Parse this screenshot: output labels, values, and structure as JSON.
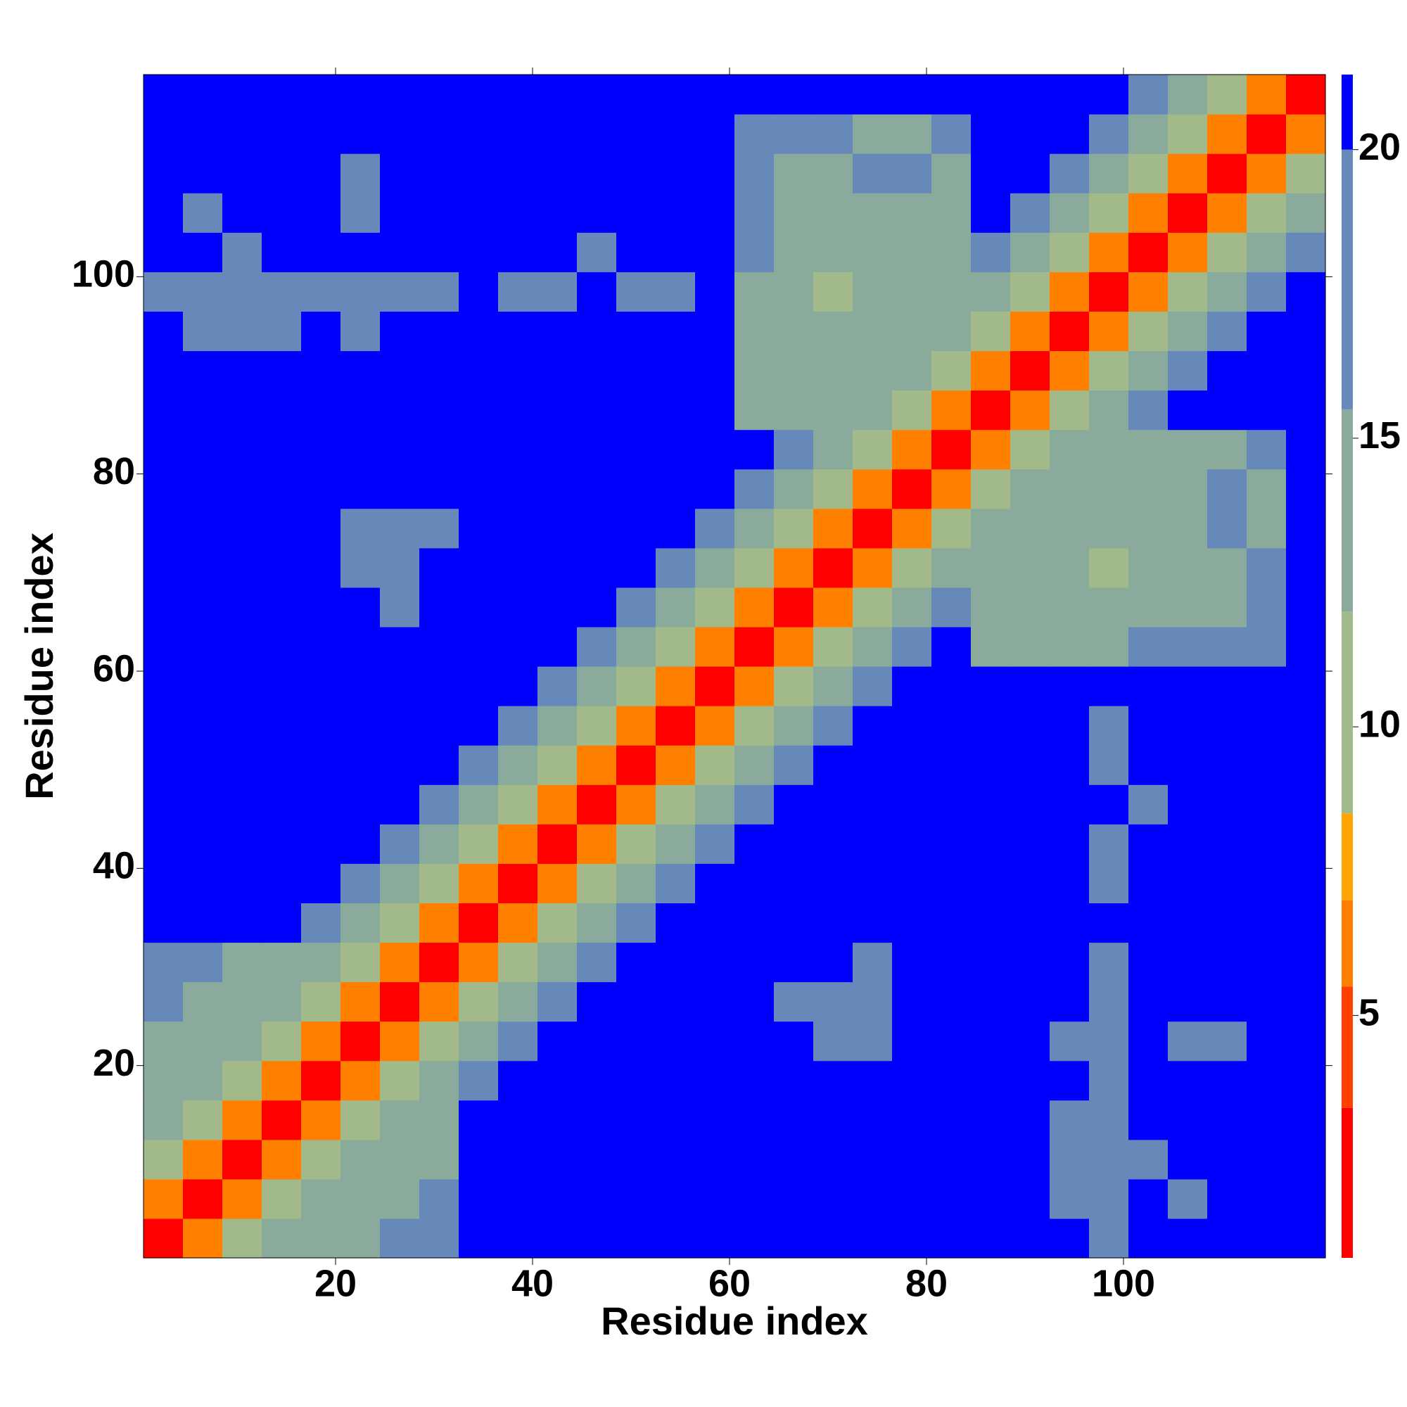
{
  "chart_data": {
    "type": "heatmap",
    "xlabel": "Residue index",
    "ylabel": "Residue index",
    "xlim": [
      0.5,
      120.5
    ],
    "ylim": [
      0.5,
      120.5
    ],
    "xticks": [
      20,
      40,
      60,
      80,
      100
    ],
    "yticks": [
      20,
      40,
      60,
      80,
      100
    ],
    "xbins": [
      0.5,
      4.5,
      8.5,
      12.5,
      16.5,
      20.5,
      24.5,
      28.5,
      32.5,
      36.5,
      40.5,
      44.5,
      48.5,
      52.5,
      56.5,
      60.5,
      64.5,
      68.5,
      72.5,
      76.5,
      80.5,
      84.5,
      88.5,
      92.5,
      96.5,
      100.5,
      104.5,
      108.5,
      112.5,
      116.5,
      120.5
    ],
    "ybins": [
      0.5,
      4.5,
      8.5,
      12.5,
      16.5,
      20.5,
      24.5,
      28.5,
      32.5,
      36.5,
      40.5,
      44.5,
      48.5,
      52.5,
      56.5,
      60.5,
      64.5,
      68.5,
      72.5,
      76.5,
      80.5,
      84.5,
      88.5,
      92.5,
      96.5,
      100.5,
      104.5,
      108.5,
      112.5,
      116.5,
      120.5
    ],
    "zlim": [
      0.8,
      21.3
    ],
    "zticks": [
      5,
      10,
      15,
      20
    ],
    "colorscale": [
      {
        "max": 3.4,
        "color": "#ff0000"
      },
      {
        "max": 5.5,
        "color": "#ff4000"
      },
      {
        "max": 7,
        "color": "#ff8000"
      },
      {
        "max": 8.5,
        "color": "#ffa500"
      },
      {
        "max": 12,
        "color": "#a2b98a"
      },
      {
        "max": 15.5,
        "color": "#8aab9c"
      },
      {
        "max": 20,
        "color": "#6689ba"
      },
      {
        "max": 21.3,
        "color": "#0000ff"
      }
    ],
    "values": [
      [
        3,
        7,
        12,
        13,
        14,
        15,
        16,
        17,
        21,
        21,
        21,
        21,
        21,
        21,
        21,
        21,
        21,
        21,
        21,
        21,
        21,
        21,
        21,
        21,
        20,
        21,
        21,
        21,
        21,
        21
      ],
      [
        7,
        3,
        7,
        12,
        13,
        14,
        15,
        16,
        21,
        21,
        21,
        21,
        21,
        21,
        21,
        21,
        21,
        21,
        21,
        21,
        21,
        21,
        21,
        19,
        16,
        21,
        19,
        21,
        21,
        21
      ],
      [
        12,
        7,
        3,
        7,
        12,
        13,
        14,
        15,
        21,
        21,
        21,
        21,
        21,
        21,
        21,
        21,
        21,
        21,
        21,
        21,
        21,
        21,
        21,
        19,
        17,
        19,
        21,
        21,
        21,
        21
      ],
      [
        13,
        12,
        7,
        3,
        7,
        12,
        13,
        14,
        21,
        21,
        21,
        21,
        21,
        21,
        21,
        21,
        21,
        21,
        21,
        21,
        21,
        21,
        21,
        18,
        18,
        21,
        21,
        21,
        21,
        21
      ],
      [
        14,
        13,
        12,
        7,
        3,
        7,
        12,
        13,
        18,
        21,
        21,
        21,
        21,
        21,
        21,
        21,
        21,
        21,
        21,
        21,
        21,
        21,
        21,
        21,
        20,
        21,
        21,
        21,
        21,
        21
      ],
      [
        15,
        14,
        13,
        12,
        7,
        3,
        7,
        12,
        15,
        18,
        21,
        21,
        21,
        21,
        21,
        21,
        21,
        16,
        19,
        21,
        21,
        21,
        21,
        20,
        19,
        21,
        19,
        19,
        21,
        21
      ],
      [
        16,
        15,
        14,
        13,
        12,
        7,
        3,
        7,
        12,
        15,
        18,
        21,
        21,
        21,
        21,
        21,
        19,
        18,
        19,
        21,
        21,
        21,
        21,
        21,
        19,
        21,
        21,
        21,
        21,
        21
      ],
      [
        17,
        16,
        15,
        14,
        13,
        12,
        7,
        3,
        7,
        12,
        15,
        18,
        21,
        21,
        21,
        21,
        21,
        21,
        20,
        21,
        21,
        21,
        21,
        21,
        20,
        21,
        21,
        21,
        21,
        21
      ],
      [
        21,
        21,
        21,
        21,
        18,
        15,
        12,
        7,
        3,
        7,
        12,
        15,
        18,
        21,
        21,
        21,
        21,
        21,
        21,
        21,
        21,
        21,
        21,
        21,
        21,
        21,
        21,
        21,
        21,
        21
      ],
      [
        21,
        21,
        21,
        21,
        21,
        18,
        15,
        12,
        7,
        3,
        7,
        12,
        15,
        18,
        21,
        21,
        21,
        21,
        21,
        21,
        21,
        21,
        21,
        21,
        20,
        21,
        21,
        21,
        21,
        21
      ],
      [
        21,
        21,
        21,
        21,
        21,
        21,
        18,
        15,
        12,
        7,
        3,
        7,
        12,
        14,
        16,
        21,
        21,
        21,
        21,
        21,
        21,
        21,
        21,
        21,
        19,
        21,
        21,
        21,
        21,
        21
      ],
      [
        21,
        21,
        21,
        21,
        21,
        21,
        21,
        18,
        15,
        12,
        7,
        3,
        7,
        12,
        14,
        16,
        21,
        21,
        21,
        21,
        21,
        21,
        21,
        21,
        21,
        20,
        21,
        21,
        21,
        21
      ],
      [
        21,
        21,
        21,
        21,
        21,
        21,
        21,
        21,
        18,
        15,
        12,
        7,
        3,
        7,
        12,
        14,
        16,
        21,
        21,
        21,
        21,
        21,
        21,
        21,
        20,
        21,
        21,
        21,
        21,
        21
      ],
      [
        21,
        21,
        21,
        21,
        21,
        21,
        21,
        21,
        21,
        18,
        14,
        12,
        7,
        3,
        7,
        12,
        14,
        18,
        21,
        21,
        21,
        21,
        21,
        21,
        19,
        21,
        21,
        21,
        21,
        21
      ],
      [
        21,
        21,
        21,
        21,
        21,
        21,
        21,
        21,
        21,
        21,
        16,
        14,
        12,
        7,
        3,
        7,
        12,
        15,
        18,
        21,
        21,
        21,
        21,
        21,
        21,
        21,
        21,
        21,
        21,
        21
      ],
      [
        21,
        21,
        21,
        21,
        21,
        21,
        21,
        21,
        21,
        21,
        21,
        16,
        14,
        12,
        7,
        3,
        7,
        12,
        15,
        18,
        21,
        15,
        15,
        15,
        15,
        16,
        17,
        19,
        20,
        21
      ],
      [
        21,
        21,
        21,
        21,
        21,
        21,
        19,
        21,
        21,
        21,
        21,
        21,
        16,
        14,
        12,
        7,
        3,
        7,
        12,
        15,
        18,
        15,
        15,
        13,
        14,
        15,
        15,
        15,
        18,
        21
      ],
      [
        21,
        21,
        21,
        21,
        21,
        16,
        18,
        21,
        21,
        21,
        21,
        21,
        21,
        18,
        15,
        12,
        7,
        3,
        7,
        12,
        15,
        15,
        15,
        15,
        12,
        13,
        15,
        15,
        18,
        21
      ],
      [
        21,
        21,
        21,
        21,
        21,
        19,
        19,
        20,
        21,
        21,
        21,
        21,
        21,
        21,
        18,
        15,
        12,
        7,
        3,
        7,
        12,
        15,
        15,
        13,
        15,
        15,
        15,
        16,
        15,
        21
      ],
      [
        21,
        21,
        21,
        21,
        21,
        21,
        21,
        21,
        21,
        21,
        21,
        21,
        21,
        21,
        21,
        18,
        15,
        12,
        7,
        3,
        7,
        12,
        15,
        15,
        15,
        15,
        15,
        16,
        15,
        21
      ],
      [
        21,
        21,
        21,
        21,
        21,
        21,
        21,
        21,
        21,
        21,
        21,
        21,
        21,
        21,
        21,
        21,
        18,
        15,
        12,
        7,
        3,
        7,
        12,
        15,
        15,
        15,
        15,
        15,
        17,
        21
      ],
      [
        21,
        21,
        21,
        21,
        21,
        21,
        21,
        21,
        21,
        21,
        21,
        21,
        21,
        21,
        21,
        15,
        15,
        15,
        15,
        12,
        7,
        3,
        7,
        12,
        15,
        18,
        21,
        21,
        21,
        21
      ],
      [
        21,
        21,
        21,
        21,
        21,
        21,
        21,
        21,
        21,
        21,
        21,
        21,
        21,
        21,
        21,
        15,
        15,
        15,
        15,
        15,
        12,
        7,
        3,
        7,
        12,
        15,
        18,
        21,
        21,
        21
      ],
      [
        21,
        19,
        19,
        18,
        21,
        20,
        21,
        21,
        21,
        21,
        21,
        21,
        21,
        21,
        21,
        15,
        13,
        15,
        13,
        15,
        15,
        12,
        7,
        3,
        7,
        12,
        15,
        18,
        21,
        21
      ],
      [
        20,
        16,
        17,
        18,
        20,
        19,
        19,
        20,
        21,
        20,
        19,
        21,
        20,
        19,
        21,
        15,
        14,
        12,
        15,
        15,
        15,
        15,
        12,
        7,
        3,
        7,
        12,
        15,
        18,
        21
      ],
      [
        21,
        21,
        19,
        21,
        21,
        21,
        21,
        21,
        21,
        21,
        21,
        20,
        21,
        21,
        21,
        16,
        15,
        13,
        15,
        15,
        15,
        18,
        15,
        12,
        7,
        3,
        7,
        12,
        15,
        18
      ],
      [
        21,
        19,
        21,
        21,
        21,
        19,
        21,
        21,
        21,
        21,
        21,
        21,
        21,
        21,
        21,
        17,
        15,
        15,
        15,
        15,
        15,
        21,
        18,
        15,
        12,
        7,
        3,
        7,
        12,
        15
      ],
      [
        21,
        21,
        21,
        21,
        21,
        19,
        21,
        21,
        21,
        21,
        21,
        21,
        21,
        21,
        21,
        19,
        15,
        15,
        16,
        16,
        15,
        21,
        21,
        18,
        15,
        12,
        7,
        3,
        7,
        12
      ],
      [
        21,
        21,
        21,
        21,
        21,
        21,
        21,
        21,
        21,
        21,
        21,
        21,
        21,
        21,
        21,
        20,
        18,
        18,
        15,
        15,
        17,
        21,
        21,
        21,
        18,
        15,
        12,
        7,
        3,
        7
      ],
      [
        21,
        21,
        21,
        21,
        21,
        21,
        21,
        21,
        21,
        21,
        21,
        21,
        21,
        21,
        21,
        21,
        21,
        21,
        21,
        21,
        21,
        21,
        21,
        21,
        21,
        18,
        15,
        12,
        7,
        3
      ]
    ]
  }
}
